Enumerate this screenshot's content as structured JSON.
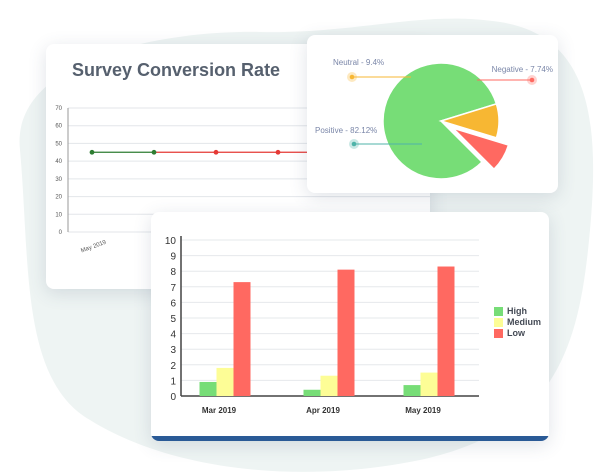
{
  "line_card": {
    "title": "Survey Conversion Rate",
    "chart_data": {
      "type": "line",
      "title": "Survey Conversion Rate",
      "y_ticks": [
        "0",
        "10",
        "20",
        "30",
        "40",
        "50",
        "60",
        "70"
      ],
      "ylim": [
        0,
        70
      ],
      "x_tick_labels": [
        "May 2019"
      ],
      "points": [
        45,
        45,
        45,
        45
      ],
      "point_colors": [
        "#2e7d32",
        "#2e7d32",
        "#e53935",
        "#e53935"
      ],
      "grid": true
    }
  },
  "pie_card": {
    "chart_data": {
      "type": "pie",
      "slices": [
        {
          "label": "Positive - 82.12%",
          "value": 82.12,
          "color": "#77dd77"
        },
        {
          "label": "Neutral - 9.4%",
          "value": 9.4,
          "color": "#f7b733"
        },
        {
          "label": "Negative - 7.74%",
          "value": 7.74,
          "color": "#ff6961",
          "exploded": true
        }
      ]
    }
  },
  "bar_card": {
    "chart_data": {
      "type": "bar",
      "categories": [
        "Mar 2019",
        "Apr 2019",
        "May 2019"
      ],
      "series": [
        {
          "name": "High",
          "color": "#77dd77",
          "values": [
            0.9,
            0.4,
            0.7
          ]
        },
        {
          "name": "Medium",
          "color": "#fdfd96",
          "values": [
            1.8,
            1.3,
            1.5
          ]
        },
        {
          "name": "Low",
          "color": "#ff6961",
          "values": [
            7.3,
            8.1,
            8.3
          ]
        }
      ],
      "y_ticks": [
        "0",
        "1",
        "2",
        "3",
        "4",
        "5",
        "6",
        "7",
        "8",
        "9",
        "10"
      ],
      "ylim": [
        0,
        10
      ],
      "legend": "right",
      "grid": true
    }
  },
  "colors": {
    "footer_accent": "#2a5a96",
    "background_blob": "#eef4f3"
  }
}
